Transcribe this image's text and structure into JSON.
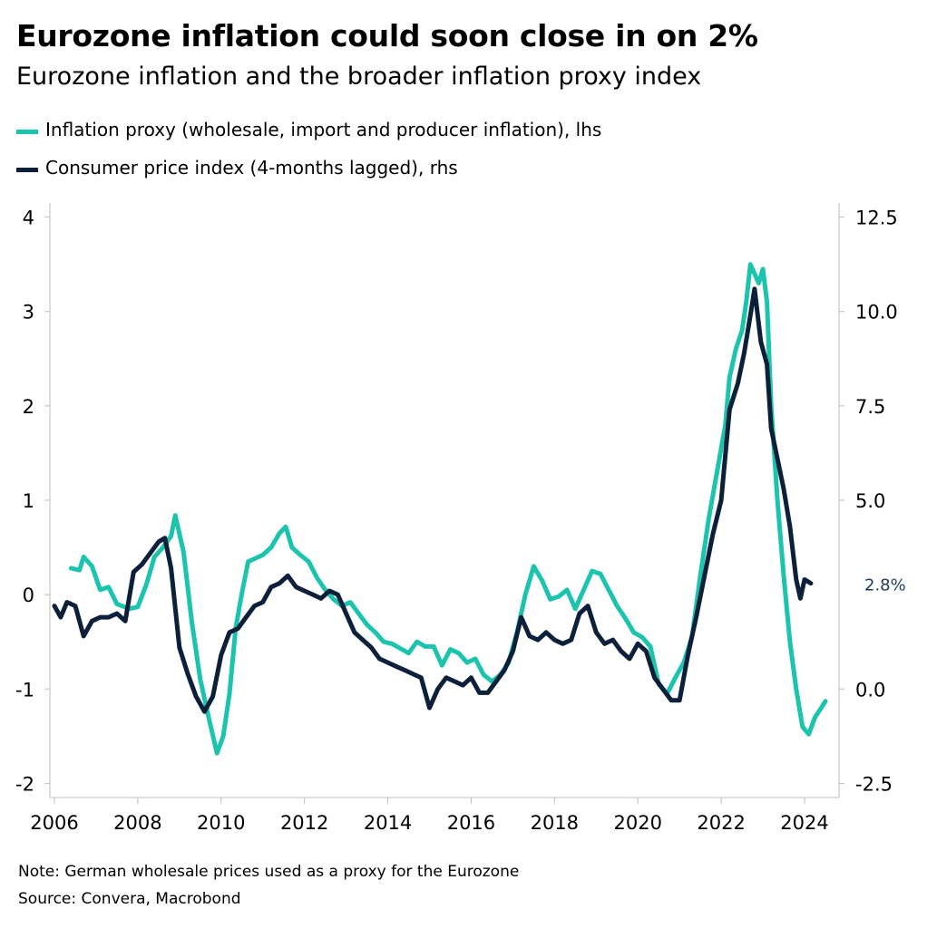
{
  "title": "Eurozone inflation could soon close in on 2%",
  "subtitle": "Eurozone inflation and the broader inflation proxy index",
  "legend": [
    {
      "label": "Inflation proxy (wholesale, import and producer inflation), lhs",
      "color": "#1cc4ae"
    },
    {
      "label": "Consumer price index (4-months lagged), rhs",
      "color": "#0c1f3b"
    }
  ],
  "notes": {
    "note": "Note: German wholesale prices used as a proxy for the Eurozone",
    "source": "Source: Convera, Macrobond"
  },
  "chart_data": {
    "type": "line",
    "x_ticks": [
      "2006",
      "2008",
      "2010",
      "2012",
      "2014",
      "2016",
      "2018",
      "2020",
      "2022",
      "2024"
    ],
    "y_left": {
      "ticks": [
        "4",
        "3",
        "2",
        "1",
        "0",
        "-1",
        "-2"
      ],
      "ylim": [
        -2.15,
        4.15
      ]
    },
    "y_right": {
      "ticks": [
        "12.5",
        "10.0",
        "7.5",
        "5.0",
        "2.8%",
        "0.0",
        "-2.5"
      ],
      "ylim": [
        -2.875,
        12.875
      ]
    },
    "annotation": "2.8%",
    "series": [
      {
        "name": "Inflation proxy (wholesale, import and producer inflation), lhs",
        "axis": "left",
        "color": "#1cc4ae",
        "points": [
          [
            2006.4,
            0.28
          ],
          [
            2006.6,
            0.26
          ],
          [
            2006.7,
            0.4
          ],
          [
            2006.9,
            0.3
          ],
          [
            2007.1,
            0.05
          ],
          [
            2007.3,
            0.08
          ],
          [
            2007.5,
            -0.1
          ],
          [
            2007.8,
            -0.15
          ],
          [
            2008.0,
            -0.13
          ],
          [
            2008.2,
            0.1
          ],
          [
            2008.4,
            0.4
          ],
          [
            2008.6,
            0.5
          ],
          [
            2008.8,
            0.62
          ],
          [
            2008.9,
            0.84
          ],
          [
            2009.1,
            0.45
          ],
          [
            2009.3,
            -0.3
          ],
          [
            2009.5,
            -0.9
          ],
          [
            2009.7,
            -1.3
          ],
          [
            2009.9,
            -1.68
          ],
          [
            2010.05,
            -1.5
          ],
          [
            2010.2,
            -1.05
          ],
          [
            2010.35,
            -0.35
          ],
          [
            2010.5,
            0.02
          ],
          [
            2010.65,
            0.35
          ],
          [
            2010.8,
            0.38
          ],
          [
            2011.0,
            0.42
          ],
          [
            2011.2,
            0.5
          ],
          [
            2011.4,
            0.65
          ],
          [
            2011.55,
            0.72
          ],
          [
            2011.7,
            0.5
          ],
          [
            2011.9,
            0.42
          ],
          [
            2012.1,
            0.35
          ],
          [
            2012.3,
            0.18
          ],
          [
            2012.5,
            0.05
          ],
          [
            2012.7,
            -0.05
          ],
          [
            2012.9,
            -0.12
          ],
          [
            2013.1,
            -0.08
          ],
          [
            2013.3,
            -0.2
          ],
          [
            2013.5,
            -0.32
          ],
          [
            2013.7,
            -0.4
          ],
          [
            2013.9,
            -0.5
          ],
          [
            2014.1,
            -0.52
          ],
          [
            2014.3,
            -0.57
          ],
          [
            2014.5,
            -0.62
          ],
          [
            2014.7,
            -0.5
          ],
          [
            2014.9,
            -0.55
          ],
          [
            2015.1,
            -0.55
          ],
          [
            2015.3,
            -0.75
          ],
          [
            2015.5,
            -0.58
          ],
          [
            2015.7,
            -0.62
          ],
          [
            2015.9,
            -0.72
          ],
          [
            2016.1,
            -0.68
          ],
          [
            2016.3,
            -0.85
          ],
          [
            2016.5,
            -0.92
          ],
          [
            2016.7,
            -0.85
          ],
          [
            2016.9,
            -0.72
          ],
          [
            2017.1,
            -0.4
          ],
          [
            2017.3,
            0.0
          ],
          [
            2017.5,
            0.3
          ],
          [
            2017.7,
            0.15
          ],
          [
            2017.9,
            -0.05
          ],
          [
            2018.1,
            -0.02
          ],
          [
            2018.3,
            0.05
          ],
          [
            2018.5,
            -0.15
          ],
          [
            2018.7,
            0.05
          ],
          [
            2018.9,
            0.25
          ],
          [
            2019.1,
            0.22
          ],
          [
            2019.3,
            0.05
          ],
          [
            2019.5,
            -0.12
          ],
          [
            2019.7,
            -0.25
          ],
          [
            2019.9,
            -0.4
          ],
          [
            2020.1,
            -0.45
          ],
          [
            2020.3,
            -0.55
          ],
          [
            2020.5,
            -0.95
          ],
          [
            2020.7,
            -1.05
          ],
          [
            2020.9,
            -0.88
          ],
          [
            2021.1,
            -0.72
          ],
          [
            2021.3,
            -0.45
          ],
          [
            2021.5,
            0.2
          ],
          [
            2021.7,
            0.8
          ],
          [
            2021.9,
            1.3
          ],
          [
            2022.1,
            1.8
          ],
          [
            2022.2,
            2.3
          ],
          [
            2022.35,
            2.6
          ],
          [
            2022.5,
            2.8
          ],
          [
            2022.6,
            3.1
          ],
          [
            2022.7,
            3.5
          ],
          [
            2022.8,
            3.4
          ],
          [
            2022.9,
            3.3
          ],
          [
            2023.0,
            3.45
          ],
          [
            2023.1,
            3.1
          ],
          [
            2023.2,
            2.0
          ],
          [
            2023.35,
            1.0
          ],
          [
            2023.5,
            0.2
          ],
          [
            2023.65,
            -0.5
          ],
          [
            2023.8,
            -1.0
          ],
          [
            2023.95,
            -1.4
          ],
          [
            2024.1,
            -1.48
          ],
          [
            2024.25,
            -1.3
          ],
          [
            2024.4,
            -1.2
          ],
          [
            2024.5,
            -1.13
          ]
        ]
      },
      {
        "name": "Consumer price index (4-months lagged), rhs",
        "axis": "right",
        "color": "#0c1f3b",
        "points": [
          [
            2006.0,
            2.2
          ],
          [
            2006.15,
            1.9
          ],
          [
            2006.3,
            2.3
          ],
          [
            2006.5,
            2.2
          ],
          [
            2006.7,
            1.4
          ],
          [
            2006.9,
            1.8
          ],
          [
            2007.1,
            1.9
          ],
          [
            2007.3,
            1.9
          ],
          [
            2007.5,
            2.0
          ],
          [
            2007.7,
            1.8
          ],
          [
            2007.9,
            3.1
          ],
          [
            2008.1,
            3.3
          ],
          [
            2008.3,
            3.6
          ],
          [
            2008.5,
            3.9
          ],
          [
            2008.65,
            4.0
          ],
          [
            2008.8,
            3.2
          ],
          [
            2009.0,
            1.1
          ],
          [
            2009.2,
            0.4
          ],
          [
            2009.4,
            -0.2
          ],
          [
            2009.6,
            -0.6
          ],
          [
            2009.8,
            -0.2
          ],
          [
            2010.0,
            0.9
          ],
          [
            2010.2,
            1.5
          ],
          [
            2010.4,
            1.6
          ],
          [
            2010.6,
            1.9
          ],
          [
            2010.8,
            2.2
          ],
          [
            2011.0,
            2.3
          ],
          [
            2011.2,
            2.7
          ],
          [
            2011.4,
            2.8
          ],
          [
            2011.6,
            3.0
          ],
          [
            2011.8,
            2.7
          ],
          [
            2012.0,
            2.6
          ],
          [
            2012.2,
            2.5
          ],
          [
            2012.4,
            2.4
          ],
          [
            2012.6,
            2.6
          ],
          [
            2012.8,
            2.5
          ],
          [
            2013.0,
            2.0
          ],
          [
            2013.2,
            1.5
          ],
          [
            2013.4,
            1.3
          ],
          [
            2013.6,
            1.1
          ],
          [
            2013.8,
            0.8
          ],
          [
            2014.0,
            0.7
          ],
          [
            2014.2,
            0.6
          ],
          [
            2014.4,
            0.5
          ],
          [
            2014.6,
            0.4
          ],
          [
            2014.8,
            0.3
          ],
          [
            2015.0,
            -0.5
          ],
          [
            2015.2,
            0.0
          ],
          [
            2015.4,
            0.3
          ],
          [
            2015.6,
            0.2
          ],
          [
            2015.8,
            0.1
          ],
          [
            2016.0,
            0.3
          ],
          [
            2016.2,
            -0.1
          ],
          [
            2016.4,
            -0.1
          ],
          [
            2016.6,
            0.2
          ],
          [
            2016.8,
            0.5
          ],
          [
            2017.0,
            1.0
          ],
          [
            2017.2,
            1.9
          ],
          [
            2017.4,
            1.4
          ],
          [
            2017.6,
            1.3
          ],
          [
            2017.8,
            1.5
          ],
          [
            2018.0,
            1.3
          ],
          [
            2018.2,
            1.2
          ],
          [
            2018.4,
            1.3
          ],
          [
            2018.6,
            2.0
          ],
          [
            2018.8,
            2.2
          ],
          [
            2019.0,
            1.5
          ],
          [
            2019.2,
            1.2
          ],
          [
            2019.4,
            1.3
          ],
          [
            2019.6,
            1.0
          ],
          [
            2019.8,
            0.8
          ],
          [
            2020.0,
            1.2
          ],
          [
            2020.2,
            1.0
          ],
          [
            2020.4,
            0.3
          ],
          [
            2020.6,
            0.0
          ],
          [
            2020.8,
            -0.3
          ],
          [
            2021.0,
            -0.3
          ],
          [
            2021.2,
            0.9
          ],
          [
            2021.4,
            1.9
          ],
          [
            2021.6,
            3.0
          ],
          [
            2021.8,
            4.1
          ],
          [
            2022.0,
            5.0
          ],
          [
            2022.2,
            7.4
          ],
          [
            2022.4,
            8.1
          ],
          [
            2022.55,
            8.9
          ],
          [
            2022.7,
            9.9
          ],
          [
            2022.8,
            10.6
          ],
          [
            2022.95,
            9.2
          ],
          [
            2023.1,
            8.6
          ],
          [
            2023.2,
            6.9
          ],
          [
            2023.35,
            6.1
          ],
          [
            2023.5,
            5.3
          ],
          [
            2023.65,
            4.3
          ],
          [
            2023.8,
            2.9
          ],
          [
            2023.9,
            2.4
          ],
          [
            2024.0,
            2.9
          ],
          [
            2024.15,
            2.8
          ]
        ]
      }
    ]
  }
}
